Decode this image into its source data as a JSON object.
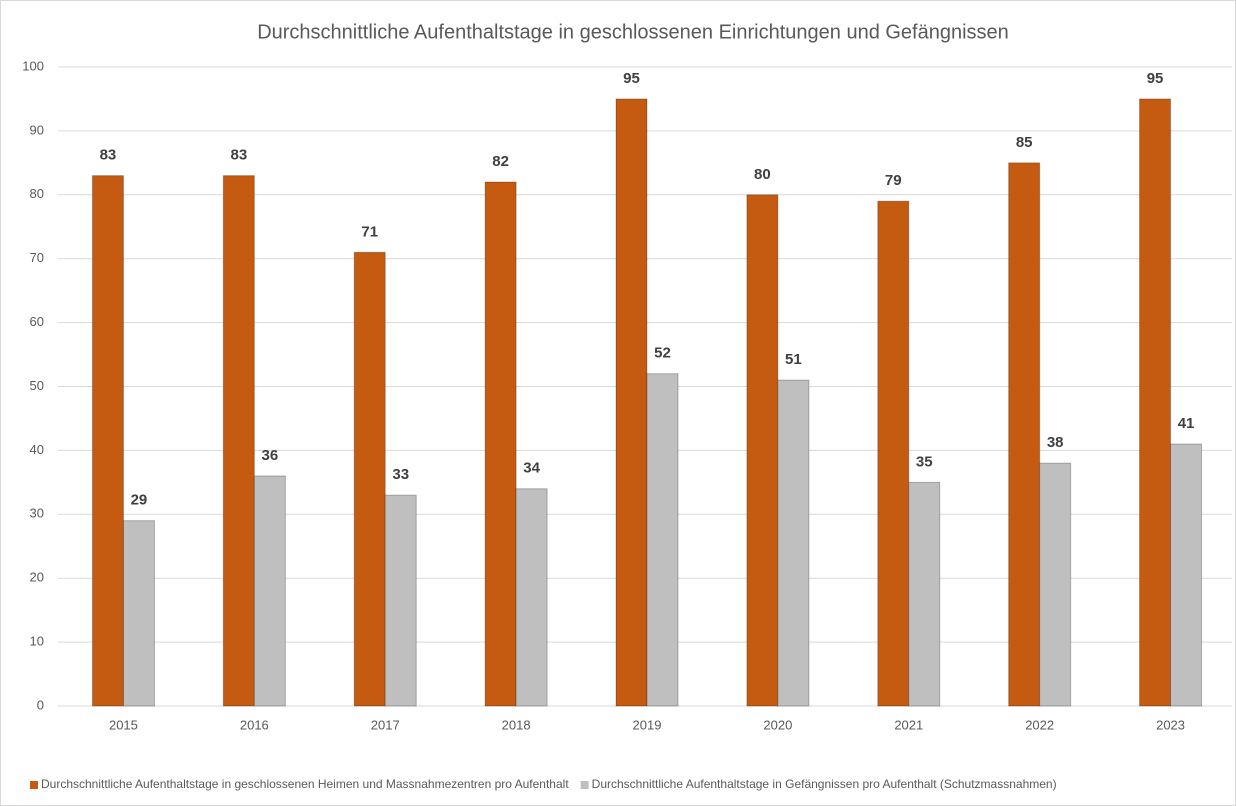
{
  "chart_data": {
    "type": "bar",
    "title": "Durchschnittliche Aufenthaltstage in geschlossenen Einrichtungen und Gefängnissen",
    "categories": [
      "2015",
      "2016",
      "2017",
      "2018",
      "2019",
      "2020",
      "2021",
      "2022",
      "2023"
    ],
    "series": [
      {
        "name": "Durchschnittliche Aufenthaltstage in geschlossenen Heimen und Massnahmezentren pro Aufenthalt",
        "color": "#c55a11",
        "values": [
          83,
          83,
          71,
          82,
          95,
          80,
          79,
          85,
          95
        ]
      },
      {
        "name": "Durchschnittliche Aufenthaltstage in Gefängnissen pro Aufenthalt (Schutzmassnahmen)",
        "color": "#bfbfbf",
        "values": [
          29,
          36,
          33,
          34,
          52,
          51,
          35,
          38,
          41
        ]
      }
    ],
    "ylim": [
      0,
      100
    ],
    "yticks": [
      0,
      10,
      20,
      30,
      40,
      50,
      60,
      70,
      80,
      90,
      100
    ],
    "grid": true,
    "legend": "bottom"
  }
}
